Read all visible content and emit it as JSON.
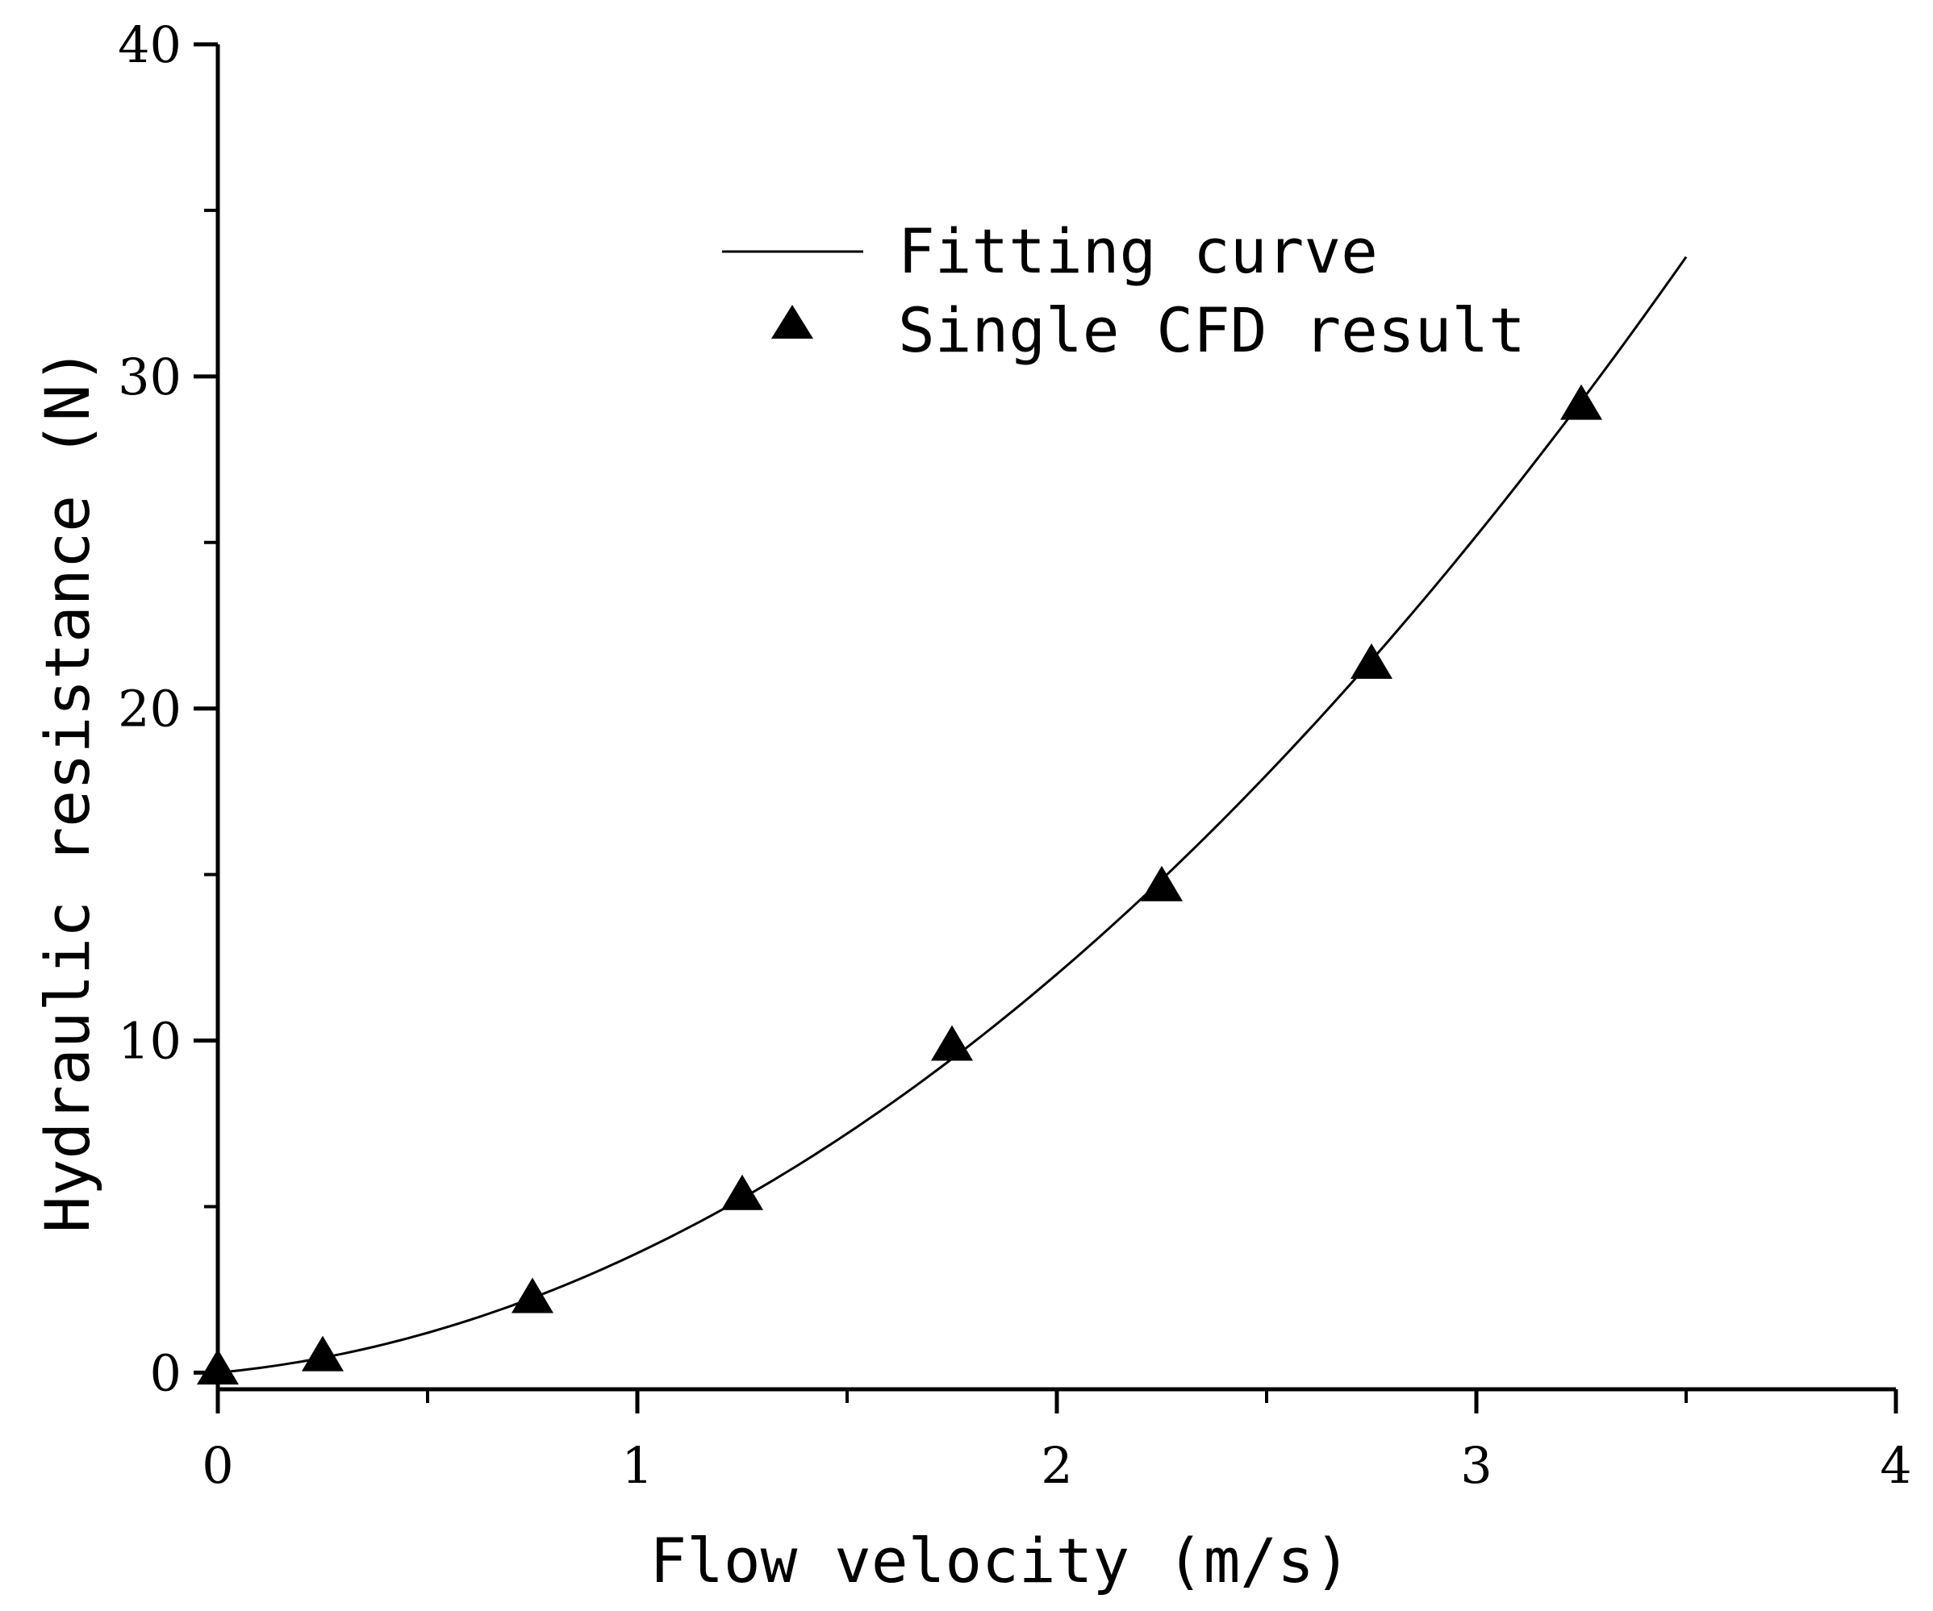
{
  "chart_data": {
    "type": "scatter",
    "title": "",
    "xlabel": "Flow velocity (m/s)",
    "ylabel": "Hydraulic resistance (N)",
    "xlim": [
      0,
      4
    ],
    "ylim": [
      -0.5,
      40
    ],
    "x_ticks": [
      0,
      1,
      2,
      3,
      4
    ],
    "y_ticks": [
      0,
      10,
      20,
      30,
      40
    ],
    "x_tick_labels": [
      "0",
      "1",
      "2",
      "3",
      "4"
    ],
    "y_tick_labels": [
      "0",
      "10",
      "20",
      "30",
      "40"
    ],
    "grid": false,
    "legend_position": "top-center",
    "series": [
      {
        "name": "Fitting curve",
        "kind": "line",
        "color": "#000000",
        "model": "quadratic",
        "coefficients": {
          "a": 2.4,
          "b": 1.2,
          "c": 0.0
        },
        "x_range": [
          0,
          3.5
        ]
      },
      {
        "name": "Single CFD result",
        "kind": "scatter",
        "marker": "triangle",
        "color": "#000000",
        "x": [
          0,
          0.25,
          0.75,
          1.25,
          1.75,
          2.25,
          2.75,
          3.25
        ],
        "y": [
          0.05,
          0.45,
          2.2,
          5.3,
          9.8,
          14.6,
          21.3,
          29.1
        ]
      }
    ]
  }
}
